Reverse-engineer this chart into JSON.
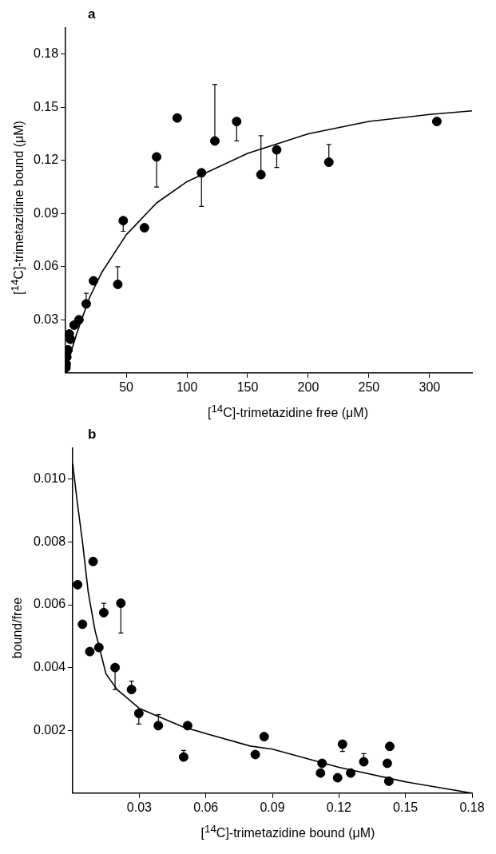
{
  "chart_data": [
    {
      "type": "scatter",
      "title": "a",
      "xlabel": "[$^{14}$C]-trimetazidine free (μM)",
      "ylabel": "[$^{14}$C]-trimetazidine bound (μM)",
      "xlim": [
        0,
        335
      ],
      "xticks": [
        50,
        100,
        150,
        200,
        250,
        300
      ],
      "ylim": [
        0,
        0.195
      ],
      "yticks": [
        0.03,
        0.06,
        0.09,
        0.12,
        0.15,
        0.18
      ],
      "marker": "circle",
      "series": [
        {
          "color": "#000000",
          "x": [
            0.3,
            0.5,
            1,
            2,
            3,
            4,
            7,
            11,
            17,
            23,
            43,
            47.5,
            65,
            75,
            92,
            112,
            123,
            141,
            161,
            174,
            217,
            306
          ],
          "values": [
            0.003,
            0.005,
            0.009,
            0.013,
            0.022,
            0.019,
            0.027,
            0.03,
            0.039,
            0.052,
            0.05,
            0.086,
            0.082,
            0.122,
            0.144,
            0.113,
            0.131,
            0.142,
            0.112,
            0.126,
            0.119,
            0.142
          ],
          "errors": [
            null,
            null,
            null,
            null,
            null,
            null,
            null,
            null,
            [
              0.039,
              0.045
            ],
            null,
            [
              0.05,
              0.06
            ],
            [
              0.08,
              0.086
            ],
            null,
            [
              0.105,
              0.122
            ],
            null,
            [
              0.094,
              0.113
            ],
            [
              0.131,
              0.163
            ],
            [
              0.131,
              0.142
            ],
            [
              0.112,
              0.134
            ],
            [
              0.116,
              0.126
            ],
            [
              0.119,
              0.129
            ],
            null
          ]
        },
        {
          "type": "line",
          "color": "#000000",
          "marker": "none",
          "x": [
            0,
            5,
            10,
            20,
            30,
            50,
            75,
            100,
            150,
            200,
            250,
            300,
            335
          ],
          "values": [
            0,
            0.013,
            0.024,
            0.043,
            0.057,
            0.078,
            0.096,
            0.108,
            0.124,
            0.135,
            0.142,
            0.146,
            0.148
          ]
        }
      ]
    },
    {
      "type": "scatter",
      "title": "b",
      "xlabel": "[$^{14}$C]-trimetazidine bound (μM)",
      "ylabel": "bound/free",
      "xlim": [
        0,
        0.18
      ],
      "xticks": [
        0.03,
        0.06,
        0.09,
        0.12,
        0.15,
        0.18
      ],
      "ylim": [
        0,
        0.011
      ],
      "yticks": [
        {
          "value": 0.002,
          "label": "0.002"
        },
        {
          "value": 0.004,
          "label": "0.004"
        },
        {
          "value": 0.006,
          "label": "0.006"
        },
        {
          "value": 0.008,
          "label": "0.008"
        },
        {
          "value": 0.01,
          "label": "0.010"
        }
      ],
      "marker": "circle",
      "series": [
        {
          "color": "#000000",
          "x": [
            0.0022,
            0.0044,
            0.0077,
            0.0092,
            0.0118,
            0.014,
            0.0191,
            0.0217,
            0.0265,
            0.0298,
            0.0386,
            0.05,
            0.0518,
            0.0823,
            0.0863,
            0.1117,
            0.1124,
            0.1194,
            0.1216,
            0.1253,
            0.1312,
            0.1418,
            0.1425,
            0.1429
          ],
          "values": [
            0.00664,
            0.00538,
            0.00451,
            0.00738,
            0.00464,
            0.00575,
            0.004,
            0.00605,
            0.0033,
            0.00254,
            0.00215,
            0.00115,
            0.00215,
            0.00123,
            0.0018,
            0.00064,
            0.00095,
            0.00049,
            0.00156,
            0.00064,
            0.001,
            0.00095,
            0.00038,
            0.00149
          ],
          "errors": [
            null,
            null,
            null,
            null,
            null,
            [
              0.00575,
              0.00605
            ],
            [
              0.0033,
              0.004
            ],
            [
              0.0051,
              0.00605
            ],
            [
              0.0033,
              0.00357
            ],
            [
              0.0022,
              0.00254
            ],
            [
              0.00215,
              0.0025
            ],
            [
              0.00115,
              0.00136
            ],
            null,
            null,
            null,
            null,
            null,
            null,
            [
              0.00133,
              0.00156
            ],
            null,
            [
              0.001,
              0.00126
            ],
            null,
            null,
            null
          ]
        },
        {
          "type": "line",
          "color": "#000000",
          "marker": "none",
          "x": [
            0,
            0.002,
            0.0044,
            0.007,
            0.01,
            0.015,
            0.02,
            0.03,
            0.04,
            0.05,
            0.06,
            0.08,
            0.09,
            0.12,
            0.15,
            0.18
          ],
          "values": [
            0.0105,
            0.0093,
            0.008,
            0.0064,
            0.0052,
            0.0038,
            0.0033,
            0.0027,
            0.0024,
            0.0021,
            0.0019,
            0.0015,
            0.0014,
            0.00082,
            0.00036,
            0
          ]
        }
      ]
    }
  ]
}
